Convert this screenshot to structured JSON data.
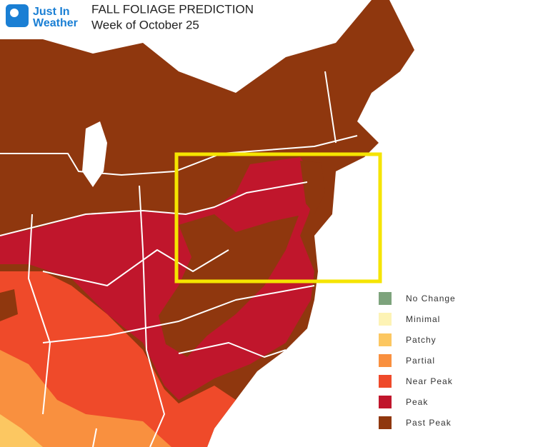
{
  "logo": {
    "line1": "Just In",
    "line2": "Weather"
  },
  "title": "FALL FOLIAGE PREDICTION",
  "subtitle": "Week of October 25",
  "legend": [
    {
      "label": "No Change",
      "color": "#7da37c"
    },
    {
      "label": "Minimal",
      "color": "#fdf3b5"
    },
    {
      "label": "Patchy",
      "color": "#fcc761"
    },
    {
      "label": "Partial",
      "color": "#f9903f"
    },
    {
      "label": "Near Peak",
      "color": "#ef4a2a"
    },
    {
      "label": "Peak",
      "color": "#c0162c"
    },
    {
      "label": "Past Peak",
      "color": "#8f370e"
    }
  ]
}
